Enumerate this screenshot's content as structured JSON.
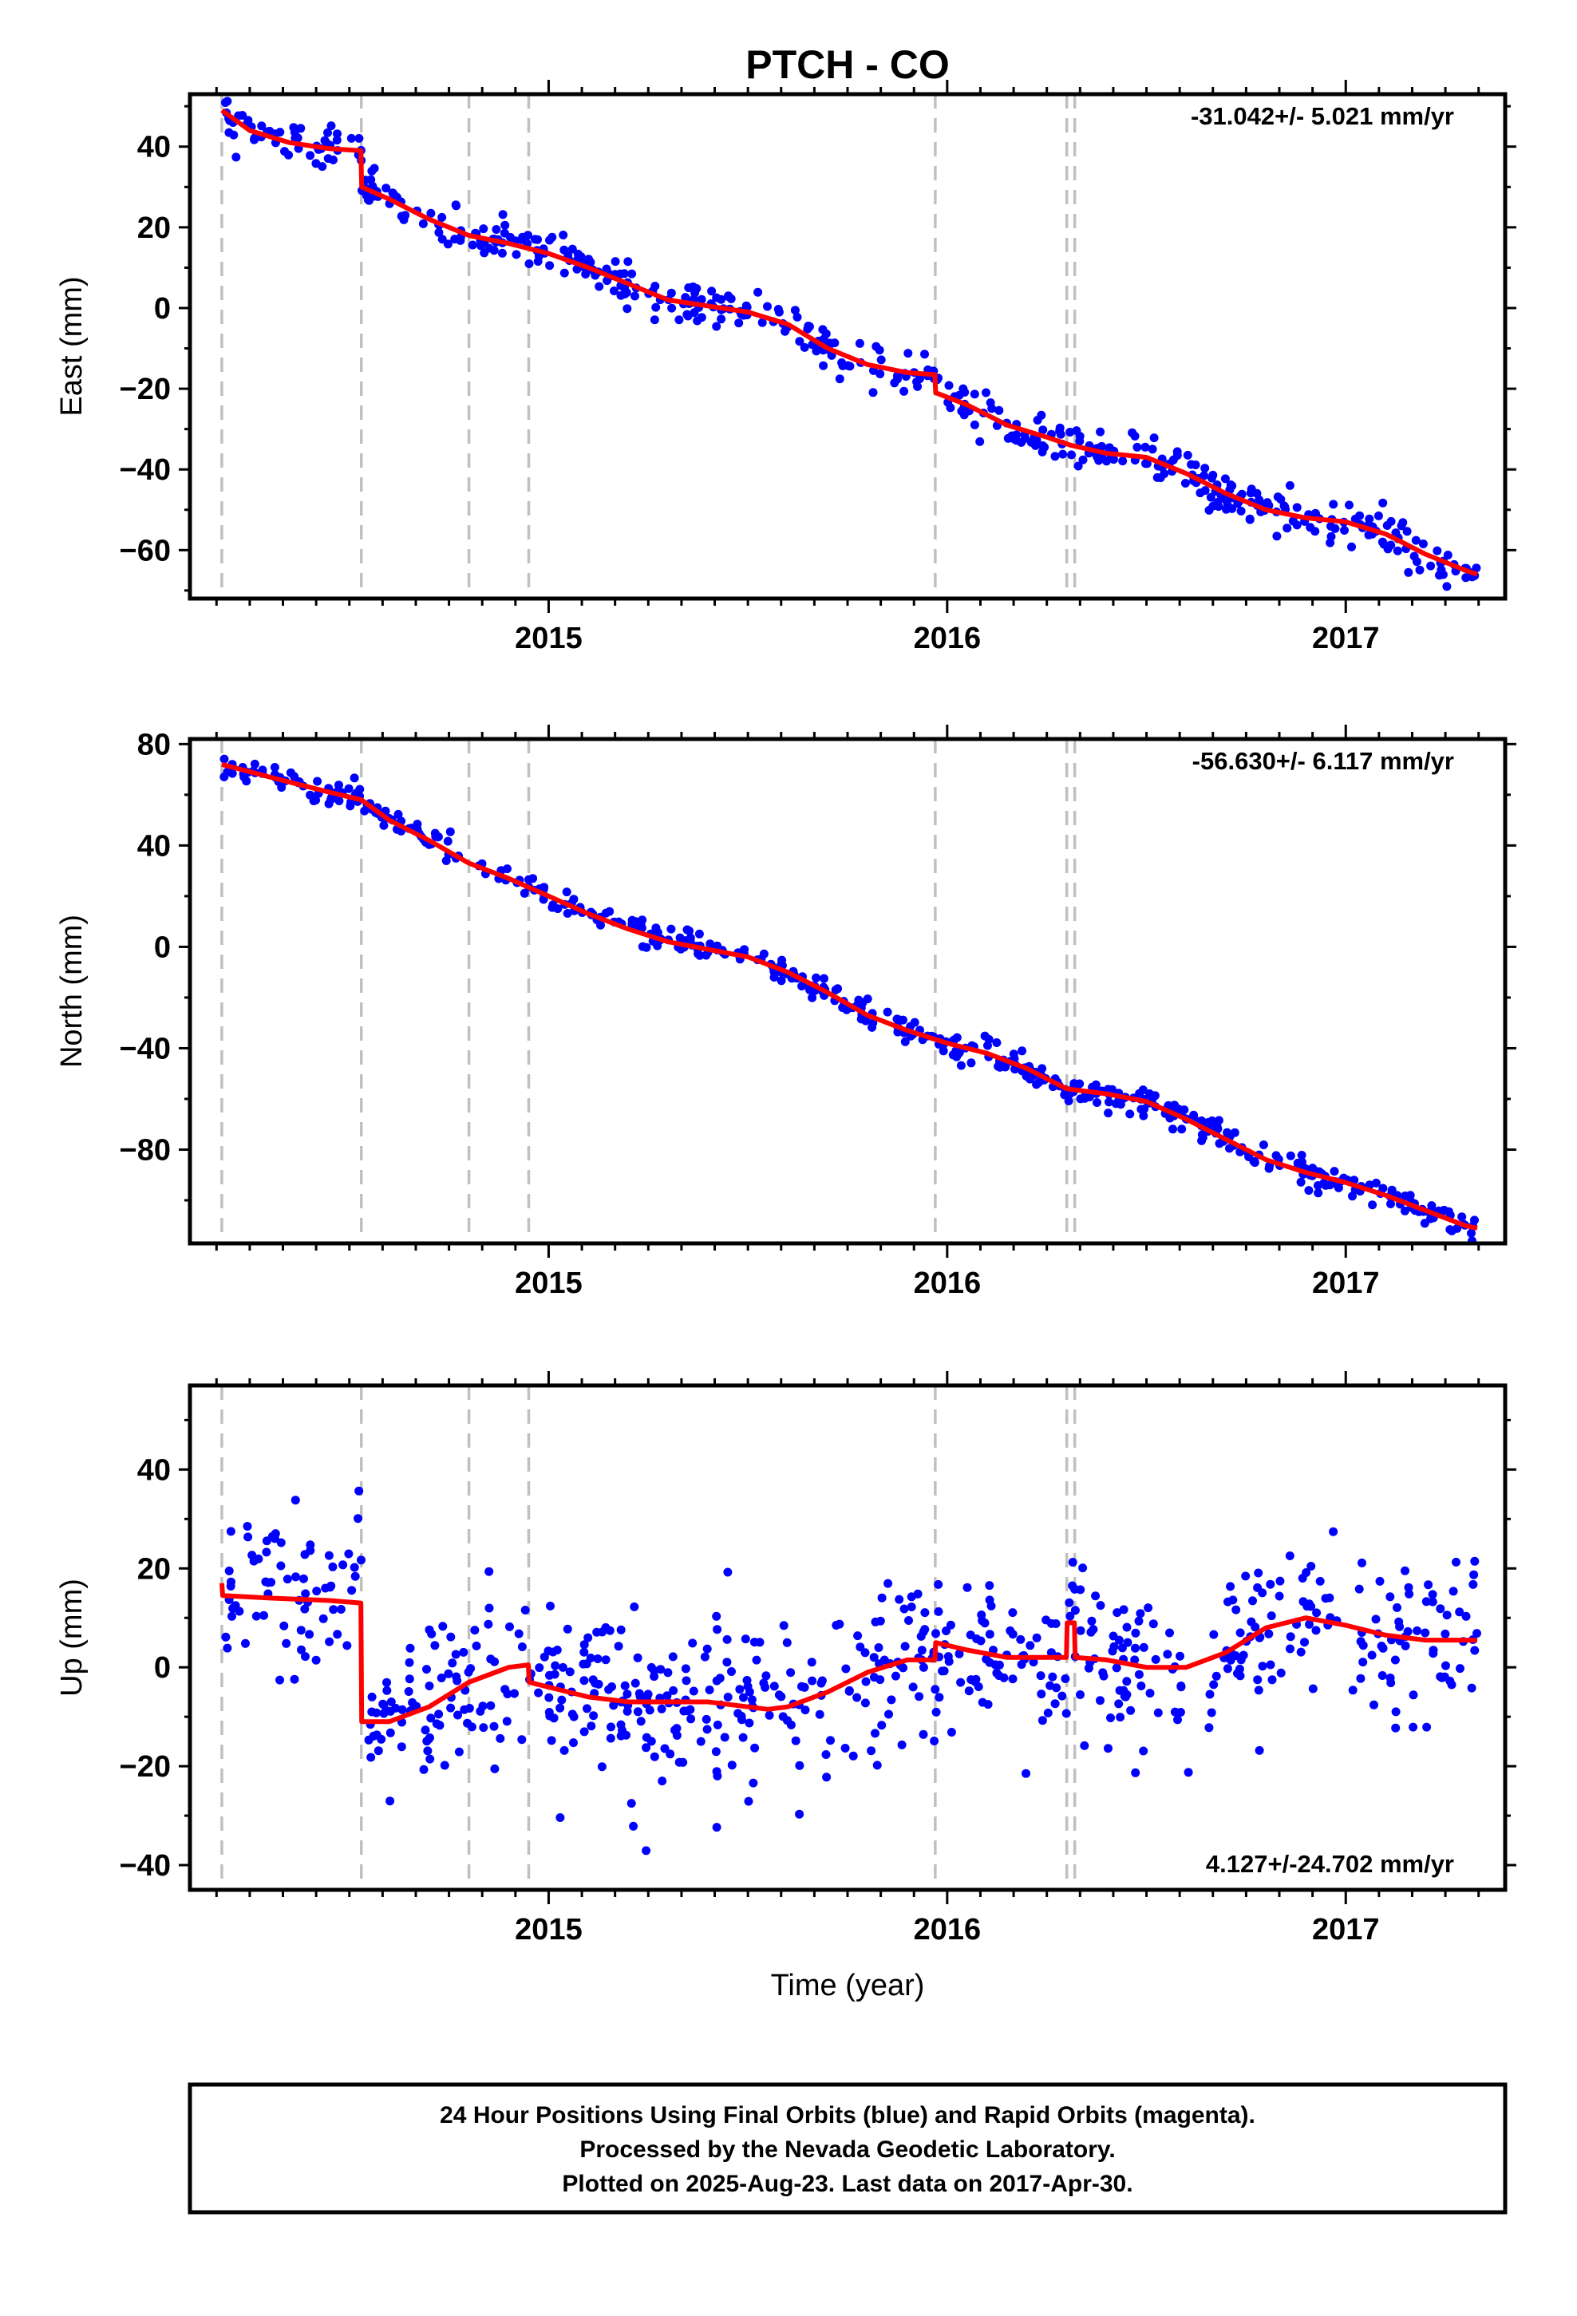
{
  "title": "PTCH - CO",
  "xlabel": "Time (year)",
  "footer": {
    "line1": "24 Hour Positions Using Final Orbits (blue) and Rapid Orbits (magenta).",
    "line2": "Processed by the Nevada Geodetic Laboratory.",
    "line3": "Plotted on 2025-Aug-23. Last data on 2017-Apr-30."
  },
  "colors": {
    "points": "#0000ff",
    "fit": "#ff0000",
    "event_lines": "#c0c0c0",
    "frame": "#000000"
  },
  "chart_data": [
    {
      "type": "scatter",
      "ylabel": "East (mm)",
      "rate": "-31.042+/- 5.021 mm/yr",
      "rate_position": "top-right",
      "xlim": [
        2014.1,
        2017.4
      ],
      "ylim": [
        -72,
        53
      ],
      "xticks": [
        2015,
        2016,
        2017
      ],
      "xtick_labels": [
        "2015",
        "2016",
        "2017"
      ],
      "yticks": [
        -60,
        -40,
        -20,
        0,
        20,
        40
      ],
      "yticklabels": [
        "−60",
        "−40",
        "−20",
        "0",
        "20",
        "40"
      ],
      "event_lines": [
        2014.18,
        2014.53,
        2014.8,
        2014.95,
        2015.97,
        2016.3,
        2016.32
      ],
      "series": [
        {
          "values": [
            [
              2014.18,
              49
            ],
            [
              2014.25,
              44
            ],
            [
              2014.35,
              41
            ],
            [
              2014.45,
              39.5
            ],
            [
              2014.529,
              39
            ],
            [
              2014.531,
              30
            ],
            [
              2014.6,
              27
            ],
            [
              2014.7,
              22
            ],
            [
              2014.8,
              18
            ],
            [
              2014.9,
              16
            ],
            [
              2015,
              13.5
            ],
            [
              2015.1,
              10
            ],
            [
              2015.2,
              6
            ],
            [
              2015.3,
              2
            ],
            [
              2015.4,
              0.5
            ],
            [
              2015.5,
              -1
            ],
            [
              2015.6,
              -4
            ],
            [
              2015.7,
              -10
            ],
            [
              2015.8,
              -14
            ],
            [
              2015.9,
              -16
            ],
            [
              2015.969,
              -16.5
            ],
            [
              2015.971,
              -21
            ],
            [
              2016.05,
              -24
            ],
            [
              2016.15,
              -29
            ],
            [
              2016.25,
              -32
            ],
            [
              2016.31,
              -34
            ],
            [
              2016.4,
              -36
            ],
            [
              2016.5,
              -37
            ],
            [
              2016.6,
              -41
            ],
            [
              2016.7,
              -46
            ],
            [
              2016.8,
              -50
            ],
            [
              2016.9,
              -52
            ],
            [
              2017,
              -53
            ],
            [
              2017.1,
              -56
            ],
            [
              2017.2,
              -61
            ],
            [
              2017.3,
              -65
            ],
            [
              2017.33,
              -66
            ]
          ]
        }
      ],
      "scatter_noise": 2.6,
      "scatter_count": 520
    },
    {
      "type": "scatter",
      "ylabel": "North (mm)",
      "rate": "-56.630+/- 6.117 mm/yr",
      "rate_position": "top-right",
      "xlim": [
        2014.1,
        2017.4
      ],
      "ylim": [
        -117,
        82
      ],
      "xticks": [
        2015,
        2016,
        2017
      ],
      "xtick_labels": [
        "2015",
        "2016",
        "2017"
      ],
      "yticks": [
        -80,
        -40,
        0,
        40,
        80
      ],
      "yticklabels": [
        "−80",
        "−40",
        "0",
        "40",
        "80"
      ],
      "event_lines": [
        2014.18,
        2014.53,
        2014.8,
        2014.95,
        2015.97,
        2016.3,
        2016.32
      ],
      "series": [
        {
          "values": [
            [
              2014.18,
              72
            ],
            [
              2014.3,
              67
            ],
            [
              2014.45,
              61
            ],
            [
              2014.53,
              58
            ],
            [
              2014.6,
              50
            ],
            [
              2014.7,
              42
            ],
            [
              2014.8,
              33
            ],
            [
              2014.9,
              27
            ],
            [
              2015,
              20
            ],
            [
              2015.1,
              13
            ],
            [
              2015.2,
              7
            ],
            [
              2015.3,
              2
            ],
            [
              2015.4,
              -1
            ],
            [
              2015.5,
              -4
            ],
            [
              2015.6,
              -10
            ],
            [
              2015.7,
              -18
            ],
            [
              2015.8,
              -27
            ],
            [
              2015.9,
              -33
            ],
            [
              2016,
              -38
            ],
            [
              2016.1,
              -42
            ],
            [
              2016.2,
              -48
            ],
            [
              2016.3,
              -56
            ],
            [
              2016.4,
              -58
            ],
            [
              2016.5,
              -61
            ],
            [
              2016.6,
              -68
            ],
            [
              2016.7,
              -76
            ],
            [
              2016.8,
              -84
            ],
            [
              2016.9,
              -89
            ],
            [
              2017,
              -93
            ],
            [
              2017.1,
              -98
            ],
            [
              2017.2,
              -104
            ],
            [
              2017.3,
              -110
            ],
            [
              2017.33,
              -111
            ]
          ]
        }
      ],
      "scatter_noise": 2.6,
      "scatter_count": 520
    },
    {
      "type": "scatter",
      "ylabel": "Up (mm)",
      "rate": "4.127+/-24.702 mm/yr",
      "rate_position": "bottom-right",
      "xlim": [
        2014.1,
        2017.4
      ],
      "ylim": [
        -45,
        57
      ],
      "xticks": [
        2015,
        2016,
        2017
      ],
      "xtick_labels": [
        "2015",
        "2016",
        "2017"
      ],
      "yticks": [
        -40,
        -20,
        0,
        20,
        40
      ],
      "yticklabels": [
        "−40",
        "−20",
        "0",
        "20",
        "40"
      ],
      "event_lines": [
        2014.18,
        2014.53,
        2014.8,
        2014.95,
        2015.97,
        2016.3,
        2016.32
      ],
      "series": [
        {
          "values": [
            [
              2014.18,
              17
            ],
            [
              2014.182,
              14.5
            ],
            [
              2014.3,
              14
            ],
            [
              2014.45,
              13.5
            ],
            [
              2014.529,
              13
            ],
            [
              2014.531,
              -11
            ],
            [
              2014.6,
              -11
            ],
            [
              2014.7,
              -8
            ],
            [
              2014.8,
              -3
            ],
            [
              2014.9,
              0
            ],
            [
              2014.949,
              0.5
            ],
            [
              2014.951,
              -3
            ],
            [
              2015,
              -4
            ],
            [
              2015.1,
              -6
            ],
            [
              2015.2,
              -7
            ],
            [
              2015.3,
              -7
            ],
            [
              2015.4,
              -7
            ],
            [
              2015.5,
              -8
            ],
            [
              2015.55,
              -8.5
            ],
            [
              2015.6,
              -8
            ],
            [
              2015.7,
              -5
            ],
            [
              2015.8,
              -1
            ],
            [
              2015.9,
              1.5
            ],
            [
              2015.969,
              1.5
            ],
            [
              2015.971,
              5
            ],
            [
              2016.05,
              3.5
            ],
            [
              2016.15,
              2
            ],
            [
              2016.299,
              2
            ],
            [
              2016.301,
              9
            ],
            [
              2016.319,
              9
            ],
            [
              2016.321,
              2
            ],
            [
              2016.4,
              1.5
            ],
            [
              2016.5,
              0
            ],
            [
              2016.6,
              0
            ],
            [
              2016.7,
              3
            ],
            [
              2016.8,
              8
            ],
            [
              2016.9,
              10
            ],
            [
              2017,
              8.5
            ],
            [
              2017.1,
              6.5
            ],
            [
              2017.2,
              5.5
            ],
            [
              2017.33,
              5.5
            ]
          ]
        }
      ],
      "scatter_noise": 8,
      "scatter_count": 700
    }
  ]
}
